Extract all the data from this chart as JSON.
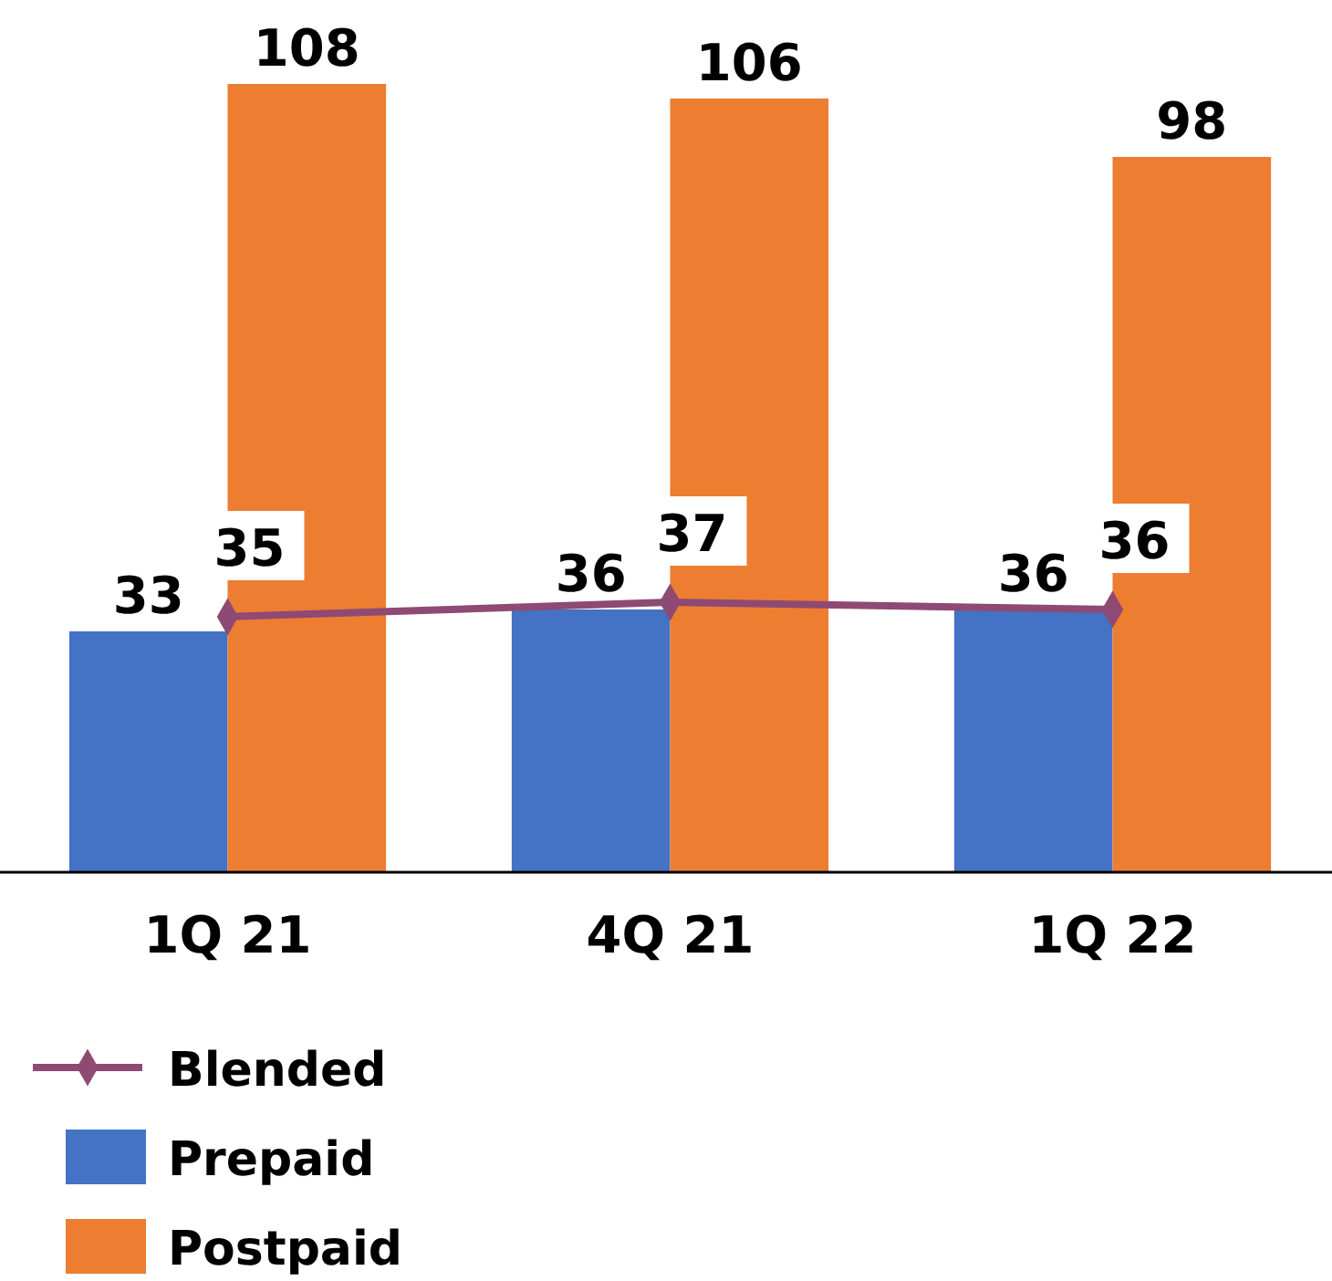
{
  "chart_data": {
    "type": "bar",
    "categories": [
      "1Q 21",
      "4Q 21",
      "1Q 22"
    ],
    "series": [
      {
        "name": "Prepaid",
        "color": "#4472c4",
        "values": [
          33,
          36,
          36
        ]
      },
      {
        "name": "Postpaid",
        "color": "#ed7d31",
        "values": [
          108,
          106,
          98
        ]
      },
      {
        "name": "Blended",
        "type": "line",
        "color": "#8e4a72",
        "values": [
          35,
          37,
          36
        ]
      }
    ],
    "data_labels": true,
    "marker": "diamond",
    "legend": "bottom left",
    "tick_labels": "x"
  }
}
